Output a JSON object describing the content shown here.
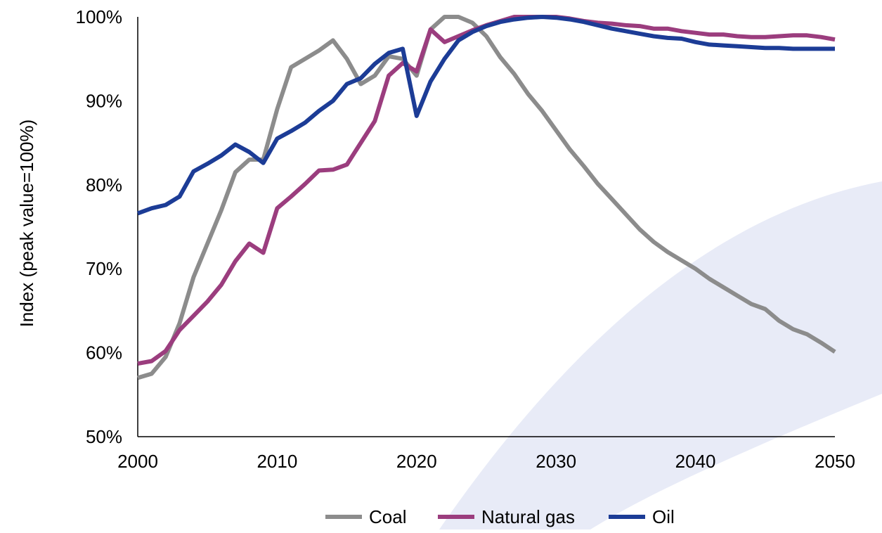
{
  "chart_data": {
    "type": "line",
    "title": "",
    "xlabel": "",
    "ylabel": "Index (peak value=100%)",
    "xlim": [
      2000,
      2050
    ],
    "ylim": [
      50,
      100
    ],
    "x_ticks": [
      "2000",
      "2010",
      "2020",
      "2030",
      "2040",
      "2050"
    ],
    "y_ticks": [
      "50%",
      "60%",
      "70%",
      "80%",
      "90%",
      "100%"
    ],
    "grid": false,
    "legend_position": "bottom",
    "background_watermark": "light blue swoosh",
    "series": [
      {
        "name": "Coal",
        "color": "#8c8c8c",
        "values": [
          [
            2000,
            57.0
          ],
          [
            2001,
            57.5
          ],
          [
            2002,
            59.5
          ],
          [
            2003,
            63.5
          ],
          [
            2004,
            69.0
          ],
          [
            2005,
            73.0
          ],
          [
            2006,
            77.0
          ],
          [
            2007,
            81.5
          ],
          [
            2008,
            83.0
          ],
          [
            2009,
            83.0
          ],
          [
            2010,
            89.0
          ],
          [
            2011,
            94.0
          ],
          [
            2012,
            95.0
          ],
          [
            2013,
            96.0
          ],
          [
            2014,
            97.2
          ],
          [
            2015,
            95.0
          ],
          [
            2016,
            92.0
          ],
          [
            2017,
            93.0
          ],
          [
            2018,
            95.3
          ],
          [
            2019,
            95.0
          ],
          [
            2020,
            93.0
          ],
          [
            2021,
            98.5
          ],
          [
            2022,
            100.0
          ],
          [
            2023,
            100.0
          ],
          [
            2024,
            99.3
          ],
          [
            2025,
            97.7
          ],
          [
            2026,
            95.2
          ],
          [
            2027,
            93.2
          ],
          [
            2028,
            90.8
          ],
          [
            2029,
            88.8
          ],
          [
            2030,
            86.5
          ],
          [
            2031,
            84.2
          ],
          [
            2032,
            82.2
          ],
          [
            2033,
            80.1
          ],
          [
            2034,
            78.3
          ],
          [
            2035,
            76.5
          ],
          [
            2036,
            74.7
          ],
          [
            2037,
            73.2
          ],
          [
            2038,
            72.0
          ],
          [
            2039,
            71.0
          ],
          [
            2040,
            70.0
          ],
          [
            2041,
            68.8
          ],
          [
            2042,
            67.8
          ],
          [
            2043,
            66.8
          ],
          [
            2044,
            65.8
          ],
          [
            2045,
            65.2
          ],
          [
            2046,
            63.8
          ],
          [
            2047,
            62.8
          ],
          [
            2048,
            62.2
          ],
          [
            2049,
            61.2
          ],
          [
            2050,
            60.1
          ]
        ]
      },
      {
        "name": "Natural gas",
        "color": "#9b3d7e",
        "values": [
          [
            2000,
            58.7
          ],
          [
            2001,
            59.0
          ],
          [
            2002,
            60.2
          ],
          [
            2003,
            62.7
          ],
          [
            2004,
            64.4
          ],
          [
            2005,
            66.1
          ],
          [
            2006,
            68.1
          ],
          [
            2007,
            70.9
          ],
          [
            2008,
            73.0
          ],
          [
            2009,
            71.9
          ],
          [
            2010,
            77.2
          ],
          [
            2011,
            78.6
          ],
          [
            2012,
            80.1
          ],
          [
            2013,
            81.7
          ],
          [
            2014,
            81.8
          ],
          [
            2015,
            82.4
          ],
          [
            2016,
            85.0
          ],
          [
            2017,
            87.6
          ],
          [
            2018,
            93.0
          ],
          [
            2019,
            94.5
          ],
          [
            2020,
            93.5
          ],
          [
            2021,
            98.5
          ],
          [
            2022,
            97.0
          ],
          [
            2023,
            97.7
          ],
          [
            2024,
            98.4
          ],
          [
            2025,
            99.0
          ],
          [
            2026,
            99.5
          ],
          [
            2027,
            100.0
          ],
          [
            2028,
            100.0
          ],
          [
            2029,
            100.0
          ],
          [
            2030,
            100.0
          ],
          [
            2031,
            99.8
          ],
          [
            2032,
            99.5
          ],
          [
            2033,
            99.3
          ],
          [
            2034,
            99.2
          ],
          [
            2035,
            99.0
          ],
          [
            2036,
            98.9
          ],
          [
            2037,
            98.6
          ],
          [
            2038,
            98.6
          ],
          [
            2039,
            98.3
          ],
          [
            2040,
            98.1
          ],
          [
            2041,
            97.9
          ],
          [
            2042,
            97.9
          ],
          [
            2043,
            97.7
          ],
          [
            2044,
            97.6
          ],
          [
            2045,
            97.6
          ],
          [
            2046,
            97.7
          ],
          [
            2047,
            97.8
          ],
          [
            2048,
            97.8
          ],
          [
            2049,
            97.6
          ],
          [
            2050,
            97.3
          ]
        ]
      },
      {
        "name": "Oil",
        "color": "#1c3c96",
        "values": [
          [
            2000,
            76.6
          ],
          [
            2001,
            77.2
          ],
          [
            2002,
            77.6
          ],
          [
            2003,
            78.6
          ],
          [
            2004,
            81.6
          ],
          [
            2005,
            82.5
          ],
          [
            2006,
            83.5
          ],
          [
            2007,
            84.8
          ],
          [
            2008,
            83.9
          ],
          [
            2009,
            82.6
          ],
          [
            2010,
            85.5
          ],
          [
            2011,
            86.4
          ],
          [
            2012,
            87.4
          ],
          [
            2013,
            88.8
          ],
          [
            2014,
            90.0
          ],
          [
            2015,
            92.0
          ],
          [
            2016,
            92.7
          ],
          [
            2017,
            94.4
          ],
          [
            2018,
            95.7
          ],
          [
            2019,
            96.2
          ],
          [
            2020,
            88.2
          ],
          [
            2021,
            92.3
          ],
          [
            2022,
            95.0
          ],
          [
            2023,
            97.2
          ],
          [
            2024,
            98.2
          ],
          [
            2025,
            98.9
          ],
          [
            2026,
            99.4
          ],
          [
            2027,
            99.7
          ],
          [
            2028,
            99.9
          ],
          [
            2029,
            100.0
          ],
          [
            2030,
            99.9
          ],
          [
            2031,
            99.7
          ],
          [
            2032,
            99.4
          ],
          [
            2033,
            99.0
          ],
          [
            2034,
            98.6
          ],
          [
            2035,
            98.3
          ],
          [
            2036,
            98.0
          ],
          [
            2037,
            97.7
          ],
          [
            2038,
            97.5
          ],
          [
            2039,
            97.4
          ],
          [
            2040,
            97.0
          ],
          [
            2041,
            96.7
          ],
          [
            2042,
            96.6
          ],
          [
            2043,
            96.5
          ],
          [
            2044,
            96.4
          ],
          [
            2045,
            96.3
          ],
          [
            2046,
            96.3
          ],
          [
            2047,
            96.2
          ],
          [
            2048,
            96.2
          ],
          [
            2049,
            96.2
          ],
          [
            2050,
            96.2
          ]
        ]
      }
    ]
  }
}
